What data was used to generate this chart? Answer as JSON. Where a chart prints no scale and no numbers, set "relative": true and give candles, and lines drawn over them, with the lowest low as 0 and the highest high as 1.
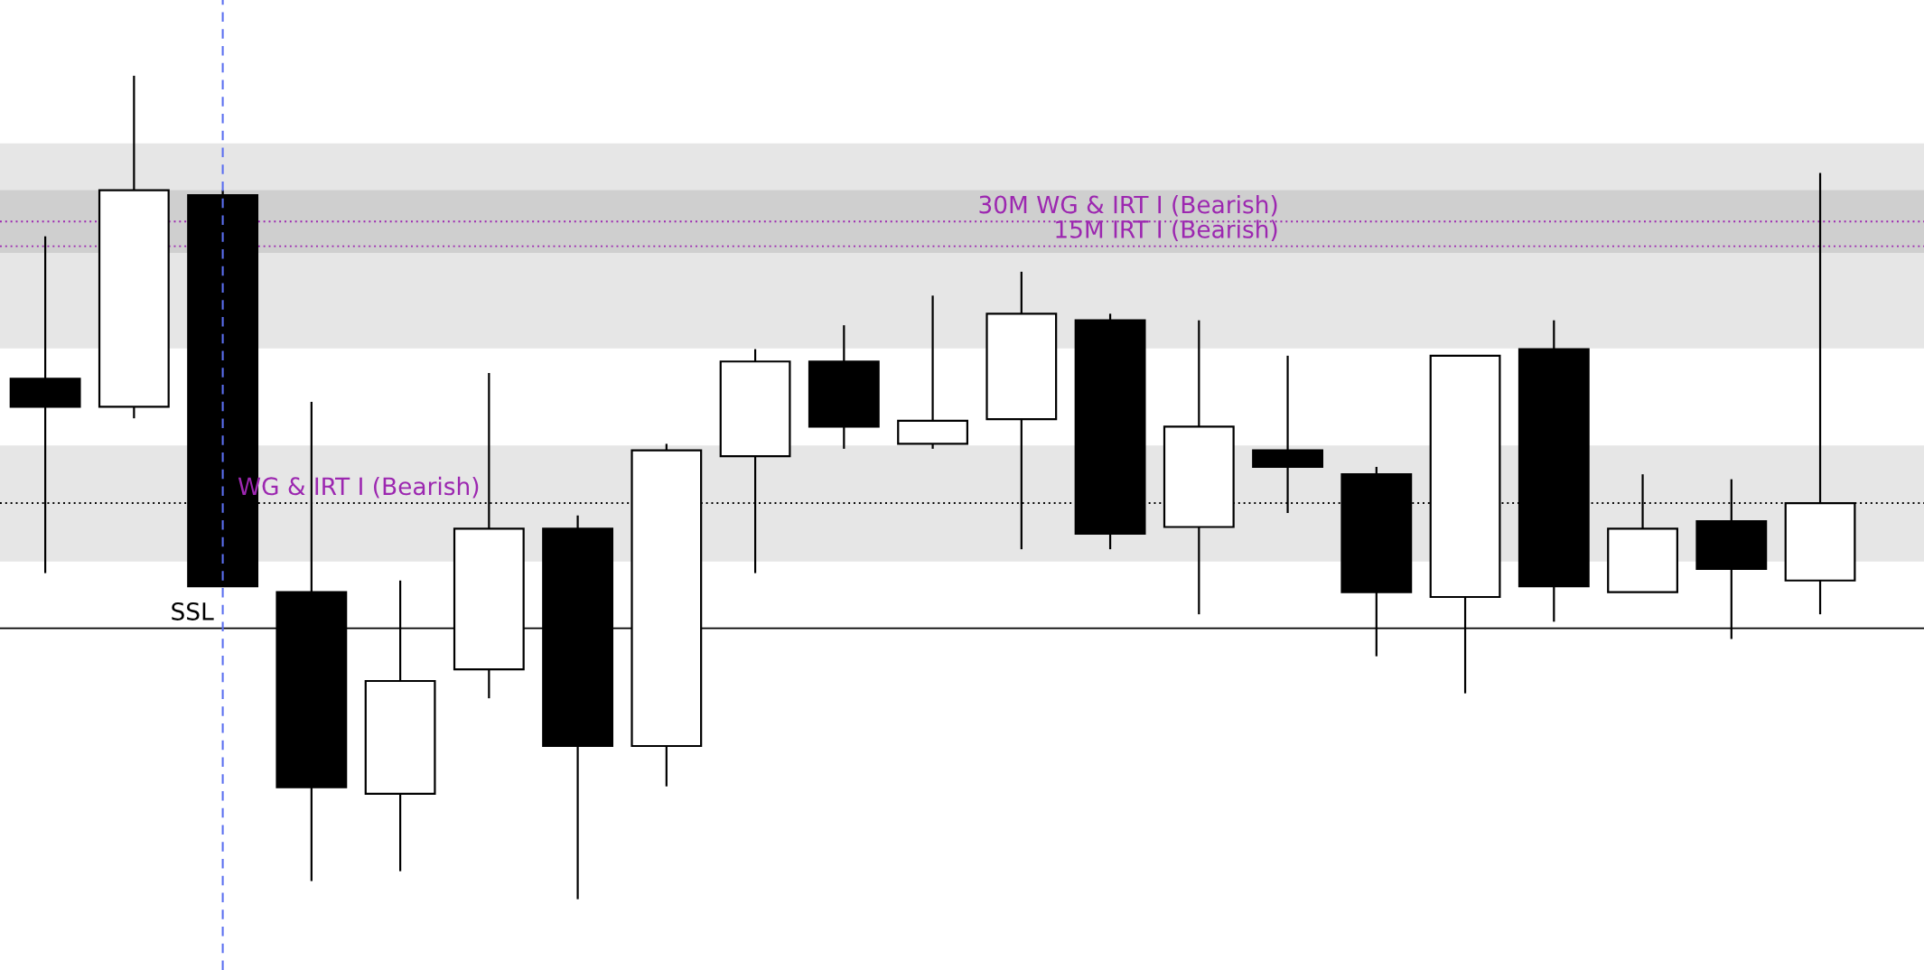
{
  "chart_data": {
    "type": "candlestick",
    "relative": true,
    "grid": false,
    "categories": [
      null,
      null,
      null,
      null,
      null,
      null,
      null,
      null,
      null,
      null,
      null,
      null,
      null,
      null,
      null,
      null,
      null,
      null,
      null,
      null,
      null
    ],
    "ohlc": [
      [
        0.632,
        0.805,
        0.396,
        0.598
      ],
      [
        0.598,
        1.0,
        0.584,
        0.861
      ],
      [
        0.855,
        0.861,
        0.38,
        0.38
      ],
      [
        0.373,
        0.604,
        0.022,
        0.136
      ],
      [
        0.128,
        0.387,
        0.034,
        0.265
      ],
      [
        0.279,
        0.639,
        0.244,
        0.45
      ],
      [
        0.45,
        0.466,
        0,
        0.186
      ],
      [
        0.186,
        0.553,
        0.137,
        0.545
      ],
      [
        0.538,
        0.668,
        0.396,
        0.653
      ],
      [
        0.653,
        0.697,
        0.547,
        0.574
      ],
      [
        0.553,
        0.733,
        0.547,
        0.581
      ],
      [
        0.583,
        0.762,
        0.425,
        0.711
      ],
      [
        0.703,
        0.711,
        0.425,
        0.444
      ],
      [
        0.452,
        0.703,
        0.346,
        0.574
      ],
      [
        0.545,
        0.66,
        0.469,
        0.525
      ],
      [
        0.516,
        0.525,
        0.295,
        0.373
      ],
      [
        0.367,
        0.66,
        0.25,
        0.66
      ],
      [
        0.668,
        0.703,
        0.337,
        0.38
      ],
      [
        0.373,
        0.516,
        0.373,
        0.45
      ],
      [
        0.459,
        0.51,
        0.316,
        0.401
      ],
      [
        0.387,
        0.882,
        0.346,
        0.481
      ]
    ],
    "bands": [
      {
        "axis": "y",
        "from": 0.669,
        "to": 0.918,
        "color": "#e6e6e6"
      },
      {
        "axis": "y",
        "from": 0.785,
        "to": 0.861,
        "color": "#cfcfcf"
      },
      {
        "axis": "y",
        "from": 0.41,
        "to": 0.551,
        "color": "#e6e6e6"
      }
    ],
    "ref_lines": [
      {
        "axis": "y",
        "value": 0.823,
        "label": "30M WG & IRT I (Bearish)",
        "color": "#9c27b0",
        "line_style": "dotted"
      },
      {
        "axis": "y",
        "value": 0.793,
        "label": "15M IRT I (Bearish)",
        "color": "#9c27b0",
        "line_style": "dotted"
      },
      {
        "axis": "y",
        "value": 0.481,
        "label": "WG & IRT I (Bearish)",
        "color": "#000000",
        "line_style": "dotted"
      },
      {
        "axis": "y",
        "value": 0.329,
        "label": "SSL",
        "color": "#000000",
        "line_style": "solid"
      }
    ]
  }
}
